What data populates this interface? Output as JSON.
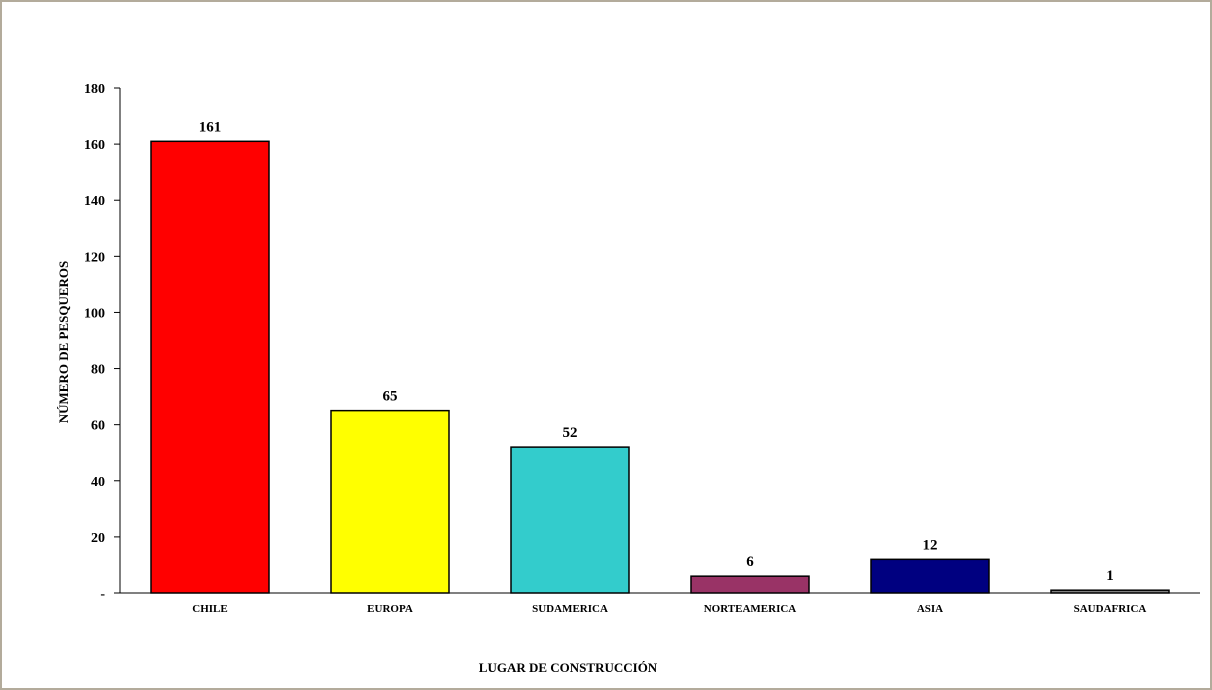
{
  "chart_data": {
    "type": "bar",
    "title": "",
    "xlabel": "LUGAR DE CONSTRUCCIÓN",
    "ylabel": "NÚMERO DE PESQUEROS",
    "categories": [
      "CHILE",
      "EUROPA",
      "SUDAMERICA",
      "NORTEAMERICA",
      "ASIA",
      "SAUDAFRICA"
    ],
    "values": [
      161,
      65,
      52,
      6,
      12,
      1
    ],
    "data_labels": [
      "161",
      "65",
      "52",
      "6",
      "12",
      "1"
    ],
    "colors": [
      "#ff0000",
      "#ffff00",
      "#33cccc",
      "#993366",
      "#000080",
      "#808080"
    ],
    "ylim": [
      0,
      180
    ],
    "yticks": [
      0,
      20,
      40,
      60,
      80,
      100,
      120,
      140,
      160,
      180
    ],
    "ytick_labels": [
      "-",
      "20",
      "40",
      "60",
      "80",
      "100",
      "120",
      "140",
      "160",
      "180"
    ],
    "grid": false,
    "legend": "none"
  }
}
